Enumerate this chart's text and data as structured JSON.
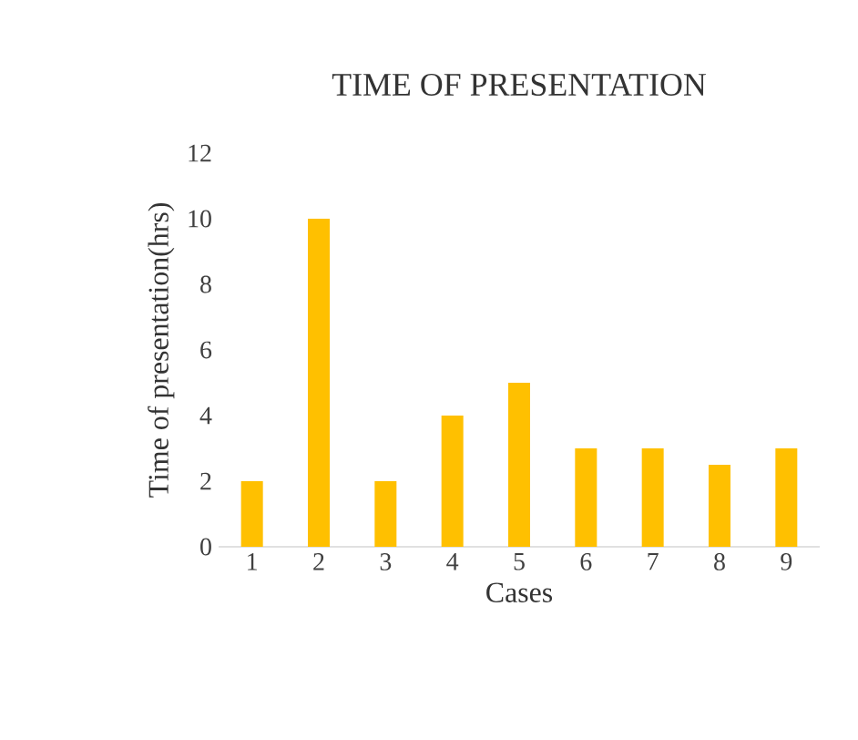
{
  "chart_data": {
    "type": "bar",
    "title": "TIME OF PRESENTATION",
    "xlabel": "Cases",
    "ylabel": "Time of presentation(hrs)",
    "categories": [
      "1",
      "2",
      "3",
      "4",
      "5",
      "6",
      "7",
      "8",
      "9"
    ],
    "values": [
      2,
      10,
      2,
      4,
      5,
      3,
      3,
      2.5,
      3
    ],
    "color": "#ffc000",
    "ylim": [
      0,
      12
    ],
    "yticks": [
      0,
      2,
      4,
      6,
      8,
      10,
      12
    ]
  }
}
